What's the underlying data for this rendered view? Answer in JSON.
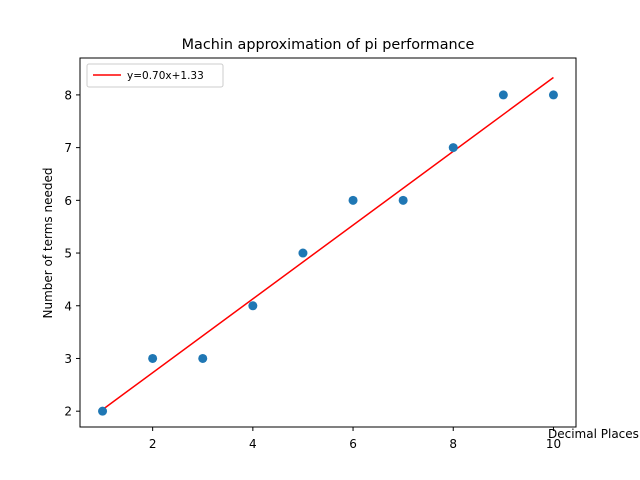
{
  "chart_data": {
    "type": "scatter",
    "title": "Machin approximation of pi performance",
    "xlabel": "Decimal Places",
    "ylabel": "Number of terms needed",
    "xlim": [
      0.55,
      10.45
    ],
    "ylim": [
      1.7,
      8.7
    ],
    "xticks": [
      2,
      4,
      6,
      8,
      10
    ],
    "yticks": [
      2,
      3,
      4,
      5,
      6,
      7,
      8
    ],
    "grid": false,
    "legend_position": "upper-left",
    "series": [
      {
        "kind": "scatter",
        "color": "#1f77b4",
        "x": [
          1,
          2,
          3,
          4,
          5,
          6,
          7,
          8,
          9,
          10
        ],
        "y": [
          2,
          3,
          3,
          4,
          5,
          6,
          6,
          7,
          8,
          8
        ]
      },
      {
        "kind": "line",
        "name": "y=0.70x+1.33",
        "color": "#ff0000",
        "slope": 0.7,
        "intercept": 1.33,
        "x_range": [
          1,
          10
        ]
      }
    ]
  }
}
